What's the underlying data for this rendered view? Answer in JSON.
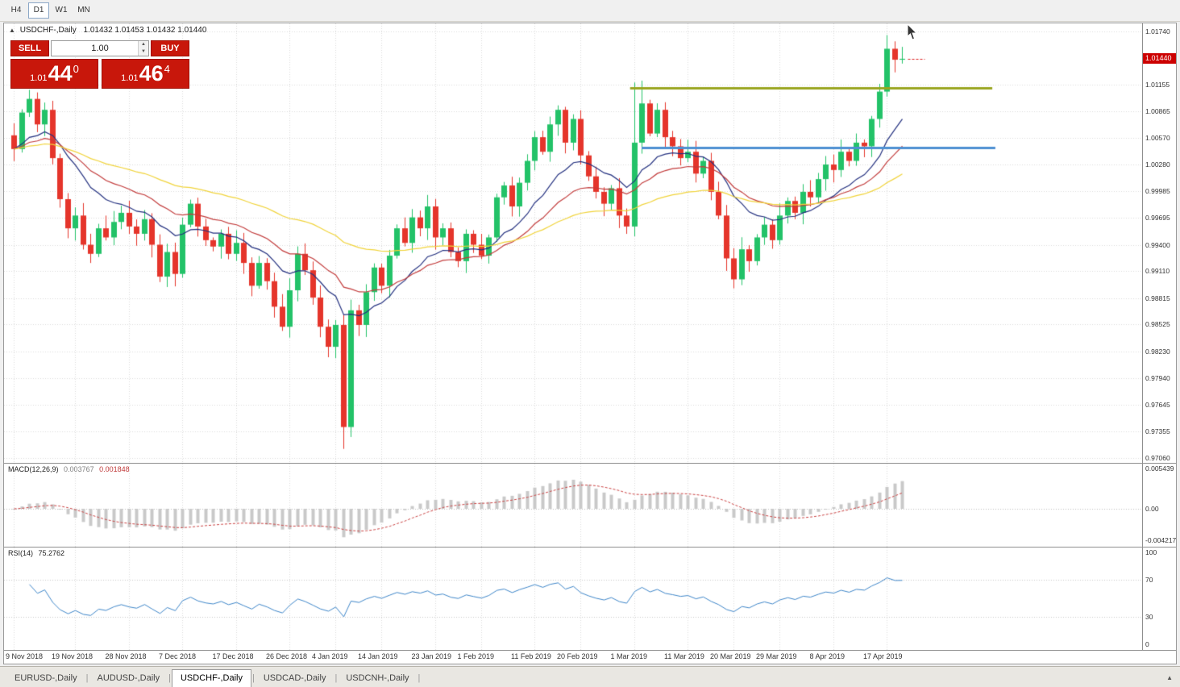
{
  "toolbar": {
    "timeframes": [
      {
        "label": "H4",
        "active": false
      },
      {
        "label": "D1",
        "active": true
      },
      {
        "label": "W1",
        "active": false
      },
      {
        "label": "MN",
        "active": false
      }
    ]
  },
  "chart": {
    "marker": "▲",
    "symbol": "USDCHF-,Daily",
    "ohlc": "1.01432 1.01453 1.01432 1.01440"
  },
  "trade_panel": {
    "sell_label": "SELL",
    "buy_label": "BUY",
    "volume": "1.00",
    "volume_up_icon": "▲",
    "volume_down_icon": "▼",
    "sell_price": {
      "small": "1.01",
      "big": "44",
      "sup": "0"
    },
    "buy_price": {
      "small": "1.01",
      "big": "46",
      "sup": "4"
    }
  },
  "price_axis": {
    "labels": [
      "1.01740",
      "1.01155",
      "1.00865",
      "1.00570",
      "1.00280",
      "0.99985",
      "0.99695",
      "0.99400",
      "0.99110",
      "0.98815",
      "0.98525",
      "0.98230",
      "0.97940",
      "0.97645",
      "0.97355",
      "0.97060"
    ],
    "current": "1.01440",
    "current_color": "#cc0000"
  },
  "macd_panel": {
    "label": "MACD(12,26,9)",
    "value_main": "0.003767",
    "value_signal": "0.001848",
    "axis": [
      "0.005439",
      "0.00",
      "-0.004217"
    ]
  },
  "rsi_panel": {
    "label": "RSI(14)",
    "value": "75.2762",
    "axis": [
      "100",
      "70",
      "30",
      "0"
    ],
    "levels": [
      70,
      30
    ]
  },
  "date_axis": {
    "labels": [
      "9 Nov 2018",
      "19 Nov 2018",
      "28 Nov 2018",
      "7 Dec 2018",
      "17 Dec 2018",
      "26 Dec 2018",
      "4 Jan 2019",
      "14 Jan 2019",
      "23 Jan 2019",
      "1 Feb 2019",
      "11 Feb 2019",
      "20 Feb 2019",
      "1 Mar 2019",
      "11 Mar 2019",
      "20 Mar 2019",
      "29 Mar 2019",
      "8 Apr 2019",
      "17 Apr 2019"
    ],
    "indices": [
      0,
      8,
      15,
      22,
      29,
      36,
      42,
      48,
      55,
      61,
      68,
      74,
      81,
      88,
      94,
      100,
      107,
      114
    ]
  },
  "tabs": {
    "items": [
      {
        "label": "EURUSD-,Daily",
        "active": false
      },
      {
        "label": "AUDUSD-,Daily",
        "active": false
      },
      {
        "label": "USDCHF-,Daily",
        "active": true
      },
      {
        "label": "USDCAD-,Daily",
        "active": false
      },
      {
        "label": "USDCNH-,Daily",
        "active": false
      }
    ],
    "scroll_icon": "▲"
  },
  "chart_data": {
    "type": "candlestick",
    "symbol": "USDCHF",
    "timeframe": "Daily",
    "ohlc_display": {
      "open": "1.01432",
      "high": "1.01453",
      "low": "1.01432",
      "close": "1.01440"
    },
    "y_range": [
      0.9706,
      1.0174
    ],
    "closes": [
      1.0045,
      1.0085,
      1.01,
      1.0072,
      1.0088,
      1.0035,
      0.999,
      0.9958,
      0.9972,
      0.994,
      0.993,
      0.9958,
      0.9948,
      0.9965,
      0.9975,
      0.996,
      0.9952,
      0.9968,
      0.994,
      0.9905,
      0.9932,
      0.9908,
      0.9962,
      0.9985,
      0.996,
      0.9945,
      0.9938,
      0.9952,
      0.993,
      0.9942,
      0.992,
      0.9895,
      0.992,
      0.99,
      0.9872,
      0.985,
      0.989,
      0.993,
      0.9912,
      0.9882,
      0.985,
      0.9828,
      0.9852,
      0.974,
      0.9868,
      0.9852,
      0.9888,
      0.9915,
      0.9895,
      0.9928,
      0.9958,
      0.9942,
      0.997,
      0.9958,
      0.9982,
      0.9948,
      0.9958,
      0.9932,
      0.9922,
      0.9952,
      0.994,
      0.9928,
      0.9948,
      0.9992,
      1.0005,
      0.9982,
      1.0008,
      1.0032,
      1.0058,
      1.0042,
      1.0072,
      1.0088,
      1.0052,
      1.0078,
      1.0038,
      1.0015,
      0.9998,
      0.9985,
      1.0002,
      0.9972,
      0.996,
      1.0052,
      1.0095,
      1.0062,
      1.0088,
      1.0058,
      1.0048,
      1.0035,
      1.0042,
      1.0018,
      1.0032,
      0.9998,
      0.9972,
      0.9925,
      0.9902,
      0.9935,
      0.9922,
      0.9948,
      0.9962,
      0.9945,
      0.9972,
      0.9988,
      0.9975,
      0.9998,
      0.9992,
      1.0012,
      1.0028,
      1.0022,
      1.0042,
      1.0032,
      1.0052,
      1.0048,
      1.0078,
      1.0108,
      1.0155,
      1.0143,
      1.0144
    ],
    "wick_overrides": {
      "2": {
        "high": 1.011
      },
      "43": {
        "low": 0.9716
      },
      "81": {
        "high": 1.0118
      },
      "82": {
        "high": 1.012
      },
      "114": {
        "high": 1.017
      }
    },
    "hlines": [
      {
        "name": "resistance-line",
        "price": 1.0112,
        "from_index": 80.5,
        "to_index": 127.8,
        "color": "#99a51f",
        "width": 3
      },
      {
        "name": "support-line",
        "price": 1.0047,
        "from_index": 82.0,
        "to_index": 128.2,
        "color": "#4e90d2",
        "width": 3
      }
    ],
    "ma": [
      {
        "period": 13,
        "color": "#23307f",
        "name": "ma-fast"
      },
      {
        "period": 24,
        "color": "#c23b3b",
        "name": "ma-mid"
      },
      {
        "period": 55,
        "color": "#f0d33a",
        "name": "ma-slow"
      }
    ],
    "macd": {
      "fast": 12,
      "slow": 26,
      "signal": 9
    },
    "rsi": {
      "period": 14
    },
    "current_price": 1.0144,
    "colors": {
      "up": "#23c268",
      "down": "#e5352b",
      "grid": "#dadada",
      "macd_hist": "#c9c9c9",
      "macd_signal": "#c94040",
      "rsi": "#3d85c8",
      "bid_line": "#dd2222"
    }
  }
}
